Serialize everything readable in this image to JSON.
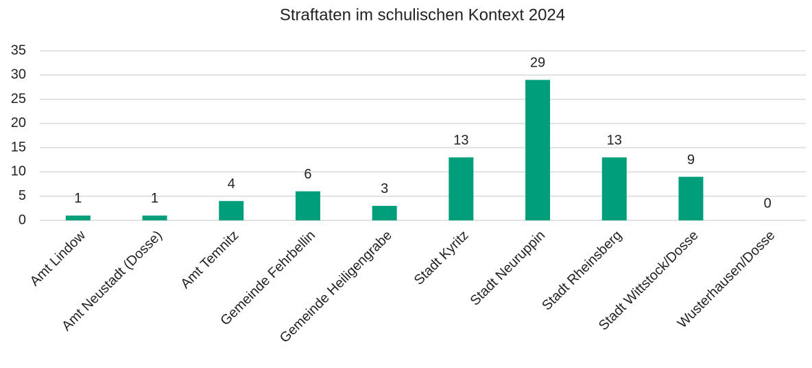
{
  "chart_data": {
    "type": "bar",
    "title": "Straftaten im schulischen Kontext 2024",
    "categories": [
      "Amt Lindow",
      "Amt Neustadt (Dosse)",
      "Amt Temnitz",
      "Gemeinde Fehrbellin",
      "Gemeinde Heiligengrabe",
      "Stadt Kyritz",
      "Stadt Neuruppin",
      "Stadt Rheinsberg",
      "Stadt Wittstock/Dosse",
      "Wusterhausen/Dosse"
    ],
    "values": [
      1,
      1,
      4,
      6,
      3,
      13,
      29,
      13,
      9,
      0
    ],
    "color": "#009e7a",
    "ylim": [
      0,
      35
    ],
    "yticks": [
      0,
      5,
      10,
      15,
      20,
      25,
      30,
      35
    ],
    "grid": true
  }
}
